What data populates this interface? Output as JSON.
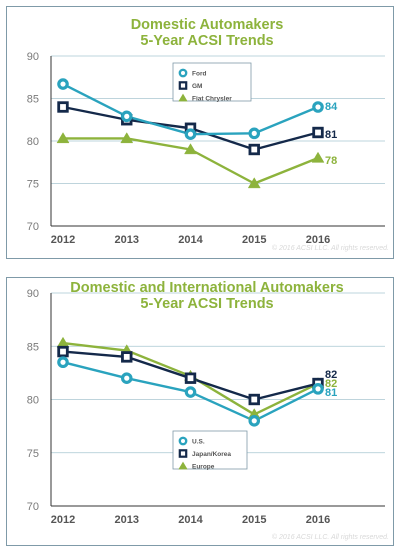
{
  "colors": {
    "title": "#8db33c",
    "series": [
      "#2aa3be",
      "#14294a",
      "#8db33c"
    ],
    "axis": "#333333",
    "grid": "#a8c6d1"
  },
  "chart_data": [
    {
      "type": "line",
      "title": "Domestic Automakers",
      "subtitle": "5-Year ACSI Trends",
      "x": [
        "2012",
        "2013",
        "2014",
        "2015",
        "2016"
      ],
      "ylim": [
        70,
        90
      ],
      "yticks": [
        "90",
        "85",
        "80",
        "75",
        "70"
      ],
      "legend_position": "top-center",
      "series": [
        {
          "name": "Ford",
          "values": [
            86.7,
            82.9,
            80.8,
            80.9,
            84
          ],
          "marker": "circle"
        },
        {
          "name": "GM",
          "values": [
            84,
            82.5,
            81.5,
            79,
            81
          ],
          "marker": "square"
        },
        {
          "name": "Fiat Chrysler",
          "values": [
            80.3,
            80.3,
            79,
            75,
            78
          ],
          "marker": "triangle"
        }
      ],
      "end_labels": [
        "84",
        "81",
        "78"
      ],
      "copyright": "© 2016 ACSI LLC. All rights reserved."
    },
    {
      "type": "line",
      "title": "Domestic and International Automakers",
      "subtitle": "5-Year ACSI Trends",
      "x": [
        "2012",
        "2013",
        "2014",
        "2015",
        "2016"
      ],
      "ylim": [
        70,
        90
      ],
      "yticks": [
        "90",
        "85",
        "80",
        "75",
        "70"
      ],
      "legend_position": "bottom-center",
      "series": [
        {
          "name": "U.S.",
          "values": [
            83.5,
            82,
            80.7,
            78,
            81
          ],
          "marker": "circle"
        },
        {
          "name": "Japan/Korea",
          "values": [
            84.5,
            84,
            82,
            80,
            81.5
          ],
          "marker": "square"
        },
        {
          "name": "Europe",
          "values": [
            85.3,
            84.6,
            82.2,
            78.6,
            81.5
          ],
          "marker": "triangle"
        }
      ],
      "end_labels": [
        "82",
        "82",
        "81"
      ],
      "copyright": "© 2016 ACSI LLC. All rights reserved."
    }
  ]
}
